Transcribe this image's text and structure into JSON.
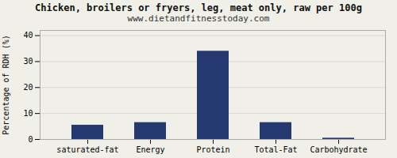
{
  "chart_data": {
    "type": "bar",
    "title": "Chicken, broilers or fryers, leg, meat only, raw per 100g",
    "subtitle": "www.dietandfitnesstoday.com",
    "categories": [
      "saturated-fat",
      "Energy",
      "Protein",
      "Total-Fat",
      "Carbohydrate"
    ],
    "values": [
      5.5,
      6.5,
      34.0,
      6.5,
      0.5
    ],
    "color": "#253870",
    "ylabel": "Percentage of RDH (%)",
    "ylim": [
      0,
      42
    ],
    "yticks": [
      0,
      10,
      20,
      30,
      40
    ],
    "grid": true
  }
}
